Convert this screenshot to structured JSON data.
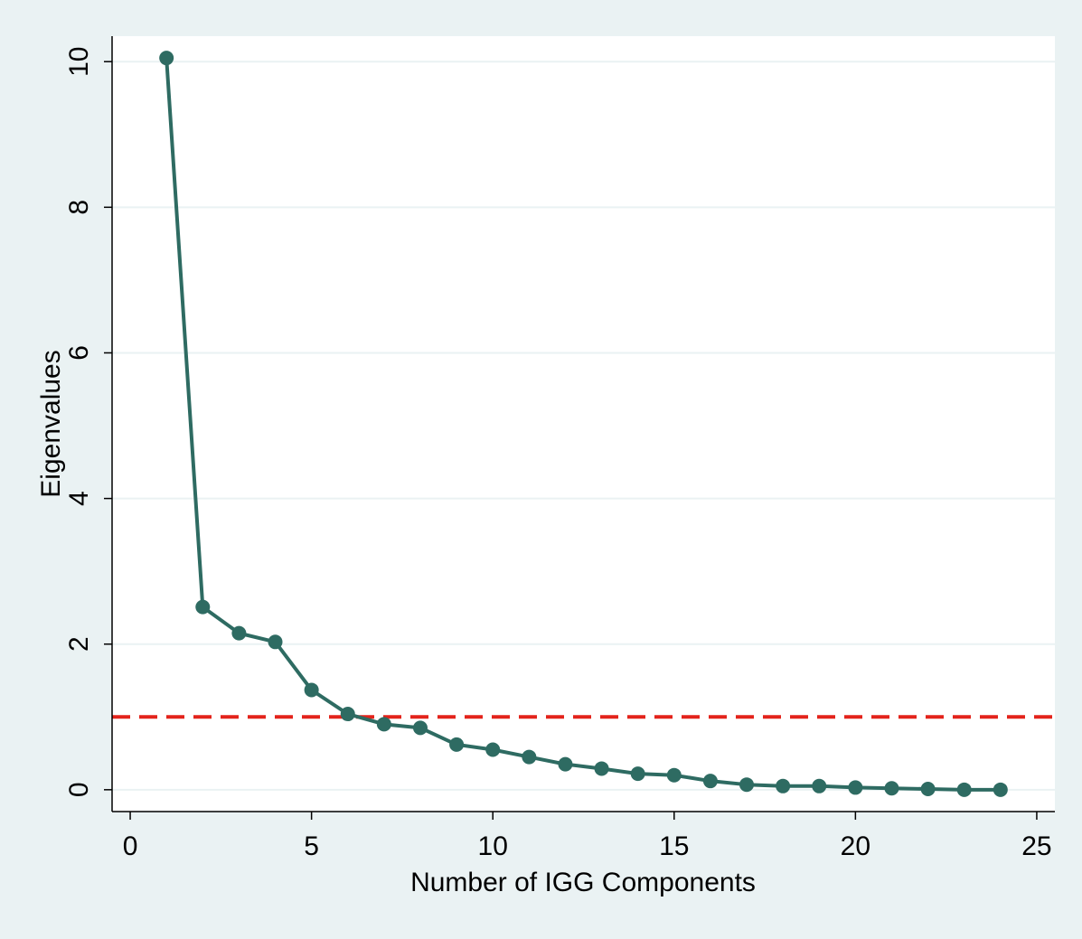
{
  "chart_data": {
    "type": "line",
    "title": "",
    "xlabel": "Number of IGG Components",
    "ylabel": "Eigenvalues",
    "xlim": [
      -0.5,
      25.5
    ],
    "ylim": [
      -0.3,
      10.35
    ],
    "xticks": [
      0,
      5,
      10,
      15,
      20,
      25
    ],
    "yticks": [
      0,
      2,
      4,
      6,
      8,
      10
    ],
    "grid": "horizontal",
    "series": [
      {
        "x": [
          1,
          2,
          3,
          4,
          5,
          6,
          7,
          8,
          9,
          10,
          11,
          12,
          13,
          14,
          15,
          16,
          17,
          18,
          19,
          20,
          21,
          22,
          23,
          24
        ],
        "values": [
          10.05,
          2.51,
          2.15,
          2.03,
          1.37,
          1.04,
          0.9,
          0.85,
          0.62,
          0.55,
          0.45,
          0.35,
          0.29,
          0.22,
          0.2,
          0.12,
          0.07,
          0.05,
          0.05,
          0.03,
          0.02,
          0.01,
          0.0,
          0.0
        ]
      }
    ],
    "reference_line": {
      "y": 1,
      "style": "dashed"
    },
    "colors": {
      "series": "#2e6b62",
      "reference_line": "#e3231b",
      "grid": "#eaf2f3",
      "background": "#eaf2f3",
      "plot_background": "#ffffff"
    }
  }
}
